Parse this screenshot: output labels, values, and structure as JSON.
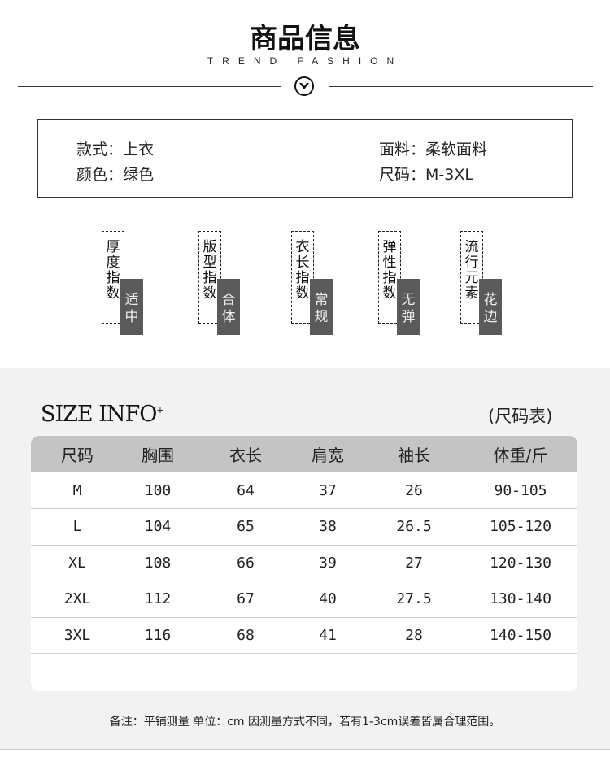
{
  "header": {
    "title": "商品信息",
    "subtitle": "TREND FASHION",
    "icon": "chevron-down-circle-icon"
  },
  "info": {
    "style": "款式：上衣",
    "color": "颜色：绿色",
    "fabric": "面料：柔软面料",
    "size": "尺码：M-3XL"
  },
  "indices": [
    {
      "label": "厚度指数",
      "value": "适中"
    },
    {
      "label": "版型指数",
      "value": "合体"
    },
    {
      "label": "衣长指数",
      "value": "常规"
    },
    {
      "label": "弹性指数",
      "value": "无弹"
    },
    {
      "label": "流行元素",
      "value": "花边"
    }
  ],
  "size_section": {
    "title": "SIZE INFO",
    "title_sup": "+",
    "label": "(尺码表)"
  },
  "table": {
    "headers": [
      "尺码",
      "胸围",
      "衣长",
      "肩宽",
      "袖长",
      "体重/斤"
    ],
    "rows": [
      [
        "M",
        "100",
        "64",
        "37",
        "26",
        "90-105"
      ],
      [
        "L",
        "104",
        "65",
        "38",
        "26.5",
        "105-120"
      ],
      [
        "XL",
        "108",
        "66",
        "39",
        "27",
        "120-130"
      ],
      [
        "2XL",
        "112",
        "67",
        "40",
        "27.5",
        "130-140"
      ],
      [
        "3XL",
        "116",
        "68",
        "41",
        "28",
        "140-150"
      ]
    ]
  },
  "note": "备注：平铺测量 单位：cm 因测量方式不同，若有1-3cm误差皆属合理范围。",
  "colors": {
    "dark_tag": "#5a5a5a",
    "table_header": "#c4c4c4",
    "section_bg": "#f2f2f2"
  }
}
